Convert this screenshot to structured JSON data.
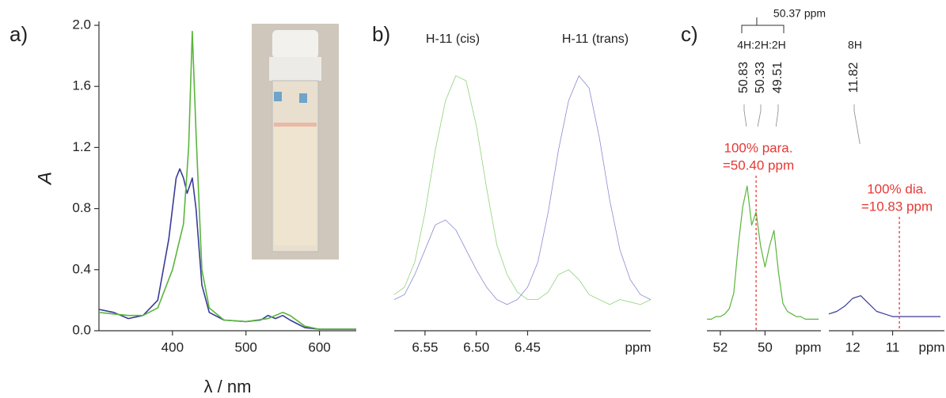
{
  "chart_data": [
    {
      "type": "line",
      "panel_label": "a)",
      "x_label": "λ / nm",
      "y_label": "A",
      "xlim": [
        300,
        650
      ],
      "xticks": [
        400,
        500,
        600
      ],
      "ylim": [
        0,
        2
      ],
      "yticks": [
        {
          "value": 0,
          "label": "0.0"
        },
        0.4,
        0.8,
        1.2,
        1.6,
        {
          "value": 2,
          "label": "2.0"
        }
      ],
      "series": [
        {
          "color": "#3a3a9a",
          "x": [
            300,
            320,
            340,
            360,
            380,
            395,
            405,
            410,
            415,
            420,
            427,
            432,
            440,
            450,
            470,
            500,
            520,
            530,
            540,
            550,
            560,
            580,
            600,
            650
          ],
          "values": [
            0.14,
            0.12,
            0.08,
            0.1,
            0.2,
            0.6,
            1.0,
            1.06,
            1.0,
            0.9,
            1.0,
            0.8,
            0.3,
            0.12,
            0.07,
            0.06,
            0.07,
            0.1,
            0.08,
            0.1,
            0.07,
            0.02,
            0.01,
            0.01
          ]
        },
        {
          "color": "#5ab53c",
          "x": [
            300,
            320,
            340,
            360,
            380,
            400,
            415,
            422,
            427,
            432,
            440,
            450,
            470,
            500,
            530,
            550,
            560,
            580,
            600,
            650
          ],
          "values": [
            0.12,
            0.11,
            0.1,
            0.1,
            0.15,
            0.4,
            0.7,
            1.2,
            1.96,
            1.3,
            0.4,
            0.15,
            0.07,
            0.06,
            0.08,
            0.12,
            0.1,
            0.03,
            0.01,
            0.01
          ]
        }
      ]
    },
    {
      "type": "line",
      "panel_label": "b)",
      "x_unit": "ppm",
      "peak_titles": [
        "H-11 (cis)",
        "H-11 (trans)"
      ],
      "xlim": [
        6.58,
        6.33
      ],
      "xticks": [
        6.55,
        {
          "value": 6.5,
          "label": "6.50"
        },
        6.45
      ],
      "ylim": [
        0,
        1.05
      ],
      "series": [
        {
          "color": "#8fd27a",
          "x": [
            6.58,
            6.57,
            6.56,
            6.55,
            6.54,
            6.53,
            6.52,
            6.51,
            6.5,
            6.49,
            6.48,
            6.47,
            6.46,
            6.45,
            6.44,
            6.43,
            6.42,
            6.41,
            6.4,
            6.39,
            6.38,
            6.37,
            6.36,
            6.35,
            6.34,
            6.33
          ],
          "values": [
            0.12,
            0.15,
            0.25,
            0.45,
            0.7,
            0.9,
            1.0,
            0.98,
            0.8,
            0.55,
            0.32,
            0.2,
            0.13,
            0.1,
            0.1,
            0.13,
            0.2,
            0.22,
            0.18,
            0.12,
            0.1,
            0.08,
            0.1,
            0.09,
            0.08,
            0.1
          ]
        },
        {
          "color": "#8a8ad0",
          "x": [
            6.58,
            6.57,
            6.56,
            6.55,
            6.54,
            6.53,
            6.52,
            6.51,
            6.5,
            6.49,
            6.48,
            6.47,
            6.46,
            6.45,
            6.44,
            6.43,
            6.42,
            6.41,
            6.4,
            6.39,
            6.38,
            6.37,
            6.36,
            6.35,
            6.34,
            6.33
          ],
          "values": [
            0.1,
            0.12,
            0.2,
            0.3,
            0.4,
            0.42,
            0.38,
            0.3,
            0.22,
            0.15,
            0.1,
            0.08,
            0.1,
            0.15,
            0.25,
            0.45,
            0.7,
            0.9,
            1.0,
            0.95,
            0.75,
            0.5,
            0.3,
            0.18,
            0.12,
            0.1
          ]
        }
      ]
    },
    {
      "type": "line",
      "panel_label": "c)",
      "x_unit": "ppm",
      "xlim": [
        52.6,
        47.5
      ],
      "xticks": [
        52,
        50
      ],
      "ylim": [
        0,
        1
      ],
      "integral": "4H:2H:2H",
      "peak_labels": [
        50.83,
        50.33,
        49.51
      ],
      "bracket": {
        "value": 50.37,
        "label": "50.37 ppm"
      },
      "reference": {
        "value": 50.4,
        "text": [
          "100% para.",
          "=50.40 ppm"
        ]
      },
      "series": [
        {
          "color": "#5ab53c",
          "x": [
            52.6,
            52.4,
            52.2,
            52.0,
            51.8,
            51.6,
            51.4,
            51.2,
            51.0,
            50.8,
            50.6,
            50.4,
            50.2,
            50.0,
            49.8,
            49.6,
            49.4,
            49.2,
            49.0,
            48.8,
            48.6,
            48.4,
            48.2,
            48.0,
            47.8,
            47.6
          ],
          "values": [
            0.02,
            0.02,
            0.03,
            0.03,
            0.04,
            0.06,
            0.12,
            0.3,
            0.45,
            0.53,
            0.38,
            0.43,
            0.3,
            0.22,
            0.3,
            0.36,
            0.2,
            0.08,
            0.05,
            0.04,
            0.03,
            0.03,
            0.02,
            0.02,
            0.02,
            0.02
          ]
        }
      ]
    },
    {
      "type": "line",
      "x_unit": "ppm",
      "xlim": [
        12.6,
        9.7
      ],
      "xticks": [
        12,
        11
      ],
      "ylim": [
        0,
        1
      ],
      "integral": "8H",
      "peak_labels": [
        11.82
      ],
      "reference": {
        "value": 10.83,
        "text": [
          "100% dia.",
          "=10.83 ppm"
        ]
      },
      "series": [
        {
          "color": "#3a3a9a",
          "x": [
            12.6,
            12.4,
            12.2,
            12.0,
            11.8,
            11.6,
            11.4,
            11.2,
            11.0,
            10.8,
            10.6,
            10.4,
            10.2,
            10.0,
            9.8
          ],
          "values": [
            0.04,
            0.05,
            0.07,
            0.1,
            0.11,
            0.08,
            0.05,
            0.04,
            0.03,
            0.03,
            0.03,
            0.03,
            0.03,
            0.03,
            0.03
          ]
        }
      ]
    }
  ]
}
